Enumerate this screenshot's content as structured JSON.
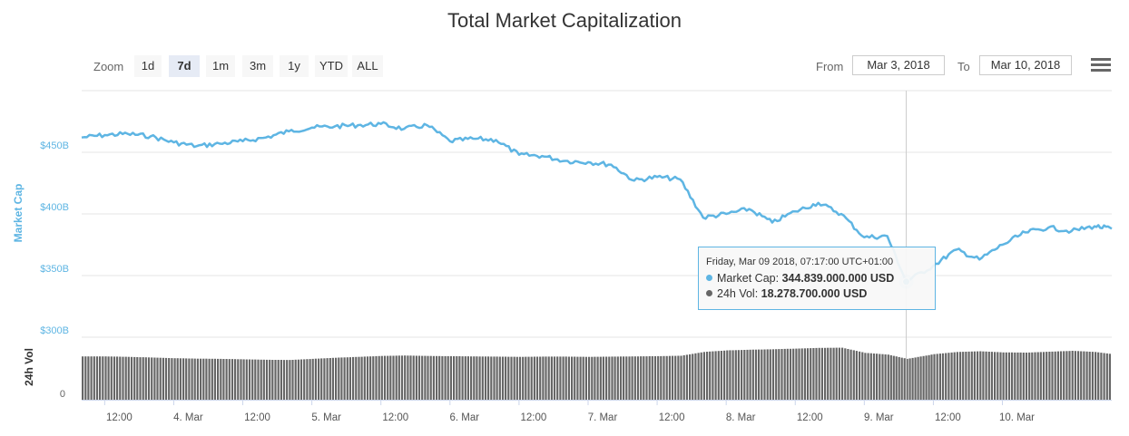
{
  "toolbar": {
    "zoom_label": "Zoom",
    "zoom_buttons": [
      {
        "label": "1d",
        "active": false
      },
      {
        "label": "7d",
        "active": true
      },
      {
        "label": "1m",
        "active": false
      },
      {
        "label": "3m",
        "active": false
      },
      {
        "label": "1y",
        "active": false
      },
      {
        "label": "YTD",
        "active": false
      },
      {
        "label": "ALL",
        "active": false
      }
    ],
    "from_label": "From",
    "from_value": "Mar 3, 2018",
    "to_label": "To",
    "to_value": "Mar 10, 2018",
    "menu_icon": "hamburger-menu-icon"
  },
  "tooltip": {
    "header": "Friday, Mar 09 2018, 07:17:00 UTC+01:00",
    "rows": [
      {
        "label": "Market Cap:",
        "value": "344.839.000.000 USD",
        "color": "#5eb5e3"
      },
      {
        "label": "24h Vol:",
        "value": "18.278.700.000 USD",
        "color": "#666666"
      }
    ]
  },
  "chart_data": {
    "type": "line",
    "title": "Total Market Capitalization",
    "colors": {
      "market_cap": "#5eb5e3",
      "volume": "#666666",
      "axis_text": "#666666"
    },
    "x_range": [
      "Mar 3, 2018 08:00",
      "Mar 10, 2018 19:00"
    ],
    "x_ticks": [
      "12:00",
      "4. Mar",
      "12:00",
      "5. Mar",
      "12:00",
      "6. Mar",
      "12:00",
      "7. Mar",
      "12:00",
      "8. Mar",
      "12:00",
      "9. Mar",
      "12:00",
      "10. Mar"
    ],
    "market_cap_axis": {
      "label": "Market Cap",
      "ticks": [
        "$300B",
        "$350B",
        "$400B",
        "$450B"
      ],
      "ylim": [
        300,
        500
      ],
      "unit": "billion USD"
    },
    "volume_axis": {
      "label": "24h Vol",
      "ticks": [
        "0"
      ],
      "ylim": [
        0,
        28
      ],
      "unit": "billion USD"
    },
    "grid": true,
    "series": [
      {
        "name": "Market Cap",
        "x": [
          "Mar 3 08:00",
          "Mar 3 12:00",
          "Mar 3 16:00",
          "Mar 3 20:00",
          "Mar 4 00:00",
          "Mar 4 04:00",
          "Mar 4 08:00",
          "Mar 4 12:00",
          "Mar 4 16:00",
          "Mar 4 20:00",
          "Mar 5 00:00",
          "Mar 5 04:00",
          "Mar 5 08:00",
          "Mar 5 12:00",
          "Mar 5 16:00",
          "Mar 5 20:00",
          "Mar 6 00:00",
          "Mar 6 04:00",
          "Mar 6 08:00",
          "Mar 6 12:00",
          "Mar 6 16:00",
          "Mar 6 20:00",
          "Mar 7 00:00",
          "Mar 7 04:00",
          "Mar 7 08:00",
          "Mar 7 12:00",
          "Mar 7 16:00",
          "Mar 7 20:00",
          "Mar 8 00:00",
          "Mar 8 04:00",
          "Mar 8 08:00",
          "Mar 8 12:00",
          "Mar 8 16:00",
          "Mar 8 20:00",
          "Mar 9 00:00",
          "Mar 9 04:00",
          "Mar 9 07:17",
          "Mar 9 12:00",
          "Mar 9 16:00",
          "Mar 9 20:00",
          "Mar 10 00:00",
          "Mar 10 04:00",
          "Mar 10 08:00",
          "Mar 10 12:00",
          "Mar 10 16:00",
          "Mar 10 19:00"
        ],
        "values": [
          462,
          464,
          465,
          463,
          458,
          455,
          457,
          459,
          462,
          467,
          470,
          471,
          472,
          473,
          469,
          472,
          459,
          461,
          460,
          448,
          447,
          443,
          442,
          440,
          427,
          430,
          428,
          397,
          400,
          404,
          393,
          402,
          409,
          400,
          381,
          382,
          345,
          358,
          371,
          363,
          375,
          385,
          389,
          386,
          390,
          388
        ]
      },
      {
        "name": "24h Vol",
        "x": [
          "Mar 3 08:00",
          "Mar 3 12:00",
          "Mar 3 16:00",
          "Mar 3 20:00",
          "Mar 4 00:00",
          "Mar 4 04:00",
          "Mar 4 08:00",
          "Mar 4 12:00",
          "Mar 4 16:00",
          "Mar 4 20:00",
          "Mar 5 00:00",
          "Mar 5 04:00",
          "Mar 5 08:00",
          "Mar 5 12:00",
          "Mar 5 16:00",
          "Mar 5 20:00",
          "Mar 6 00:00",
          "Mar 6 04:00",
          "Mar 6 08:00",
          "Mar 6 12:00",
          "Mar 6 16:00",
          "Mar 6 20:00",
          "Mar 7 00:00",
          "Mar 7 04:00",
          "Mar 7 08:00",
          "Mar 7 12:00",
          "Mar 7 16:00",
          "Mar 7 20:00",
          "Mar 8 00:00",
          "Mar 8 04:00",
          "Mar 8 08:00",
          "Mar 8 12:00",
          "Mar 8 16:00",
          "Mar 8 20:00",
          "Mar 9 00:00",
          "Mar 9 04:00",
          "Mar 9 07:17",
          "Mar 9 12:00",
          "Mar 9 16:00",
          "Mar 9 20:00",
          "Mar 10 00:00",
          "Mar 10 04:00",
          "Mar 10 08:00",
          "Mar 10 12:00",
          "Mar 10 16:00",
          "Mar 10 19:00"
        ],
        "values": [
          19.4,
          19.4,
          19.2,
          18.9,
          18.6,
          18.4,
          18.3,
          18.1,
          17.9,
          17.8,
          18.3,
          18.8,
          19.2,
          19.6,
          19.8,
          19.6,
          19.5,
          19.4,
          19.3,
          19.2,
          19.3,
          19.3,
          19.2,
          19.3,
          19.4,
          19.5,
          19.7,
          21.4,
          22.1,
          22.4,
          22.6,
          22.9,
          23.2,
          23.3,
          21.0,
          20.2,
          18.3,
          20.4,
          21.4,
          21.7,
          21.2,
          21.1,
          21.5,
          21.9,
          21.4,
          20.4
        ]
      }
    ]
  }
}
